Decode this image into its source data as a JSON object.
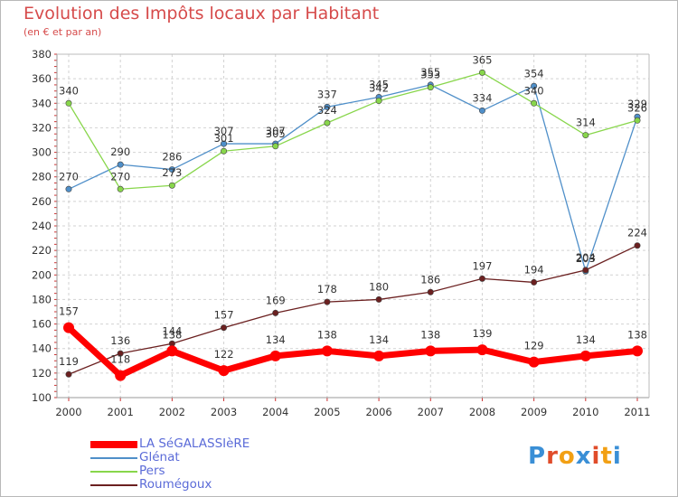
{
  "title": "Evolution des Impôts locaux par Habitant",
  "subtitle": "(en € et par an)",
  "logo": {
    "letters": [
      "P",
      "r",
      "o",
      "x",
      "i",
      "t",
      "i"
    ],
    "colors": [
      "#3a8fd6",
      "#e04c2a",
      "#f2a014",
      "#3a8fd6",
      "#e04c2a",
      "#f2a014",
      "#3a8fd6"
    ]
  },
  "chart_data": {
    "type": "line",
    "x": [
      "2000",
      "2001",
      "2002",
      "2003",
      "2004",
      "2005",
      "2006",
      "2007",
      "2008",
      "2009",
      "2010",
      "2011"
    ],
    "ylim": [
      100,
      380
    ],
    "yticks": [
      "100",
      "120",
      "140",
      "160",
      "180",
      "200",
      "220",
      "240",
      "260",
      "280",
      "300",
      "320",
      "340",
      "360",
      "380"
    ],
    "grid": true,
    "legend_position": "bottom-left",
    "series": [
      {
        "name": "LA SéGALASSIèRE",
        "color": "#ff0000",
        "values": [
          157,
          118,
          138,
          122,
          134,
          138,
          134,
          138,
          139,
          129,
          134,
          138
        ],
        "labels": [
          "157",
          "118",
          "138",
          "122",
          "134",
          "138",
          "134",
          "138",
          "139",
          "129",
          "134",
          "138"
        ]
      },
      {
        "name": "Glénat",
        "color": "#4f8fc9",
        "values": [
          270,
          290,
          286,
          307,
          307,
          337,
          345,
          355,
          334,
          354,
          203,
          329
        ],
        "labels": [
          "270",
          "290",
          "286",
          "307",
          "307",
          "337",
          "345",
          "355",
          "334",
          "354",
          "203",
          "329"
        ]
      },
      {
        "name": "Pers",
        "color": "#88d64b",
        "values": [
          340,
          270,
          273,
          301,
          305,
          324,
          342,
          353,
          365,
          340,
          314,
          326
        ],
        "labels": [
          "340",
          "270",
          "273",
          "301",
          "305",
          "324",
          "342",
          "353",
          "365",
          "340",
          "314",
          "326"
        ]
      },
      {
        "name": "Roumégoux",
        "color": "#6b2020",
        "values": [
          119,
          136,
          144,
          157,
          169,
          178,
          180,
          186,
          197,
          194,
          204,
          224
        ],
        "labels": [
          "119",
          "136",
          "144",
          "157",
          "169",
          "178",
          "180",
          "186",
          "197",
          "194",
          "204",
          "224"
        ]
      }
    ]
  }
}
